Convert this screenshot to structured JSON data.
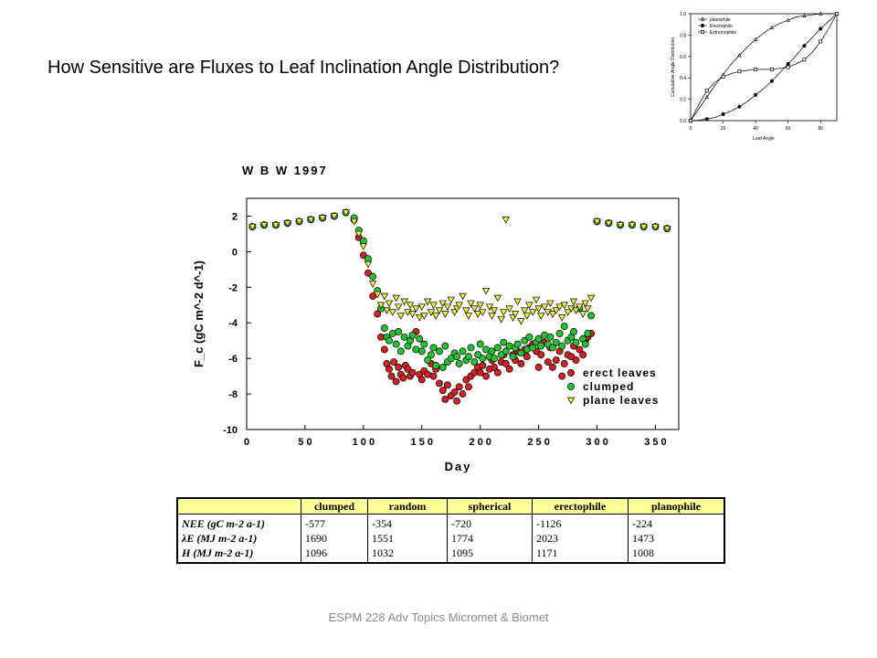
{
  "slide": {
    "title": "How Sensitive are Fluxes to Leaf Inclination Angle Distribution?",
    "footer": "ESPM 228 Adv Topics Micromet & Biomet"
  },
  "chart_data": [
    {
      "type": "scatter",
      "title": "W B W  1997",
      "xlabel": "Day",
      "ylabel": "F_c (gC m^-2 d^-1)",
      "xlim": [
        0,
        370
      ],
      "ylim": [
        -10,
        3
      ],
      "xticks": [
        0,
        50,
        100,
        150,
        200,
        250,
        300,
        350
      ],
      "yticks": [
        2,
        0,
        -2,
        -4,
        -6,
        -8,
        -10
      ],
      "legend": {
        "position": "bottom-right",
        "labels": [
          "erect leaves",
          "clumped",
          "plane leaves"
        ]
      },
      "series": [
        {
          "name": "erect leaves",
          "marker": "circle",
          "color": "#d42020",
          "x": [
            5,
            15,
            25,
            35,
            45,
            55,
            65,
            75,
            85,
            92,
            96,
            100,
            104,
            108,
            112,
            115,
            118,
            120,
            122,
            124,
            126,
            128,
            130,
            132,
            134,
            136,
            138,
            140,
            142,
            145,
            148,
            150,
            152,
            155,
            158,
            160,
            162,
            165,
            168,
            170,
            172,
            175,
            178,
            180,
            182,
            185,
            188,
            190,
            192,
            195,
            198,
            200,
            202,
            205,
            208,
            210,
            212,
            215,
            218,
            220,
            222,
            225,
            228,
            230,
            232,
            235,
            238,
            240,
            242,
            245,
            248,
            250,
            252,
            255,
            258,
            260,
            262,
            265,
            268,
            270,
            272,
            275,
            278,
            280,
            282,
            285,
            288,
            290,
            292,
            295,
            300,
            310,
            320,
            330,
            340,
            350,
            360
          ],
          "y": [
            1.4,
            1.5,
            1.5,
            1.6,
            1.7,
            1.8,
            1.9,
            2.0,
            2.2,
            1.8,
            0.8,
            -0.2,
            -1.2,
            -2.5,
            -3.5,
            -4.8,
            -5.5,
            -6.3,
            -6.6,
            -7.0,
            -6.2,
            -7.3,
            -6.5,
            -6.9,
            -7.1,
            -6.4,
            -6.6,
            -7.0,
            -6.8,
            -4.5,
            -6.9,
            -7.2,
            -6.7,
            -6.9,
            -6.3,
            -7.0,
            -6.6,
            -7.4,
            -7.8,
            -8.3,
            -7.5,
            -8.1,
            -7.9,
            -8.4,
            -7.6,
            -8.0,
            -7.2,
            -7.6,
            -7.0,
            -6.8,
            -6.5,
            -6.8,
            -6.4,
            -7.0,
            -6.6,
            -6.1,
            -6.5,
            -6.8,
            -6.2,
            -5.8,
            -6.3,
            -6.6,
            -5.8,
            -6.1,
            -5.6,
            -6.3,
            -5.5,
            -5.9,
            -5.4,
            -5.2,
            -5.6,
            -6.5,
            -5.8,
            -5.1,
            -6.2,
            -5.4,
            -6.5,
            -6.1,
            -5.6,
            -7.0,
            -6.3,
            -5.8,
            -5.9,
            -5.3,
            -6.1,
            -5.5,
            -5.8,
            -5.0,
            -4.8,
            -4.6,
            1.7,
            1.6,
            1.5,
            1.5,
            1.4,
            1.4,
            1.3
          ]
        },
        {
          "name": "clumped",
          "marker": "circle",
          "color": "#22c230",
          "x": [
            5,
            15,
            25,
            35,
            45,
            55,
            65,
            75,
            85,
            92,
            96,
            100,
            104,
            108,
            112,
            115,
            118,
            120,
            122,
            125,
            128,
            130,
            132,
            135,
            138,
            140,
            142,
            145,
            148,
            150,
            152,
            155,
            158,
            160,
            162,
            165,
            168,
            170,
            172,
            175,
            178,
            180,
            182,
            185,
            188,
            190,
            192,
            195,
            198,
            200,
            202,
            205,
            208,
            210,
            212,
            215,
            218,
            220,
            222,
            225,
            228,
            230,
            232,
            235,
            238,
            240,
            242,
            245,
            248,
            250,
            252,
            255,
            258,
            260,
            262,
            265,
            268,
            270,
            272,
            275,
            278,
            280,
            282,
            285,
            288,
            290,
            292,
            295,
            300,
            310,
            320,
            330,
            340,
            350,
            360
          ],
          "y": [
            1.4,
            1.5,
            1.5,
            1.6,
            1.7,
            1.8,
            1.9,
            2.0,
            2.2,
            1.9,
            1.2,
            0.6,
            -0.4,
            -1.4,
            -2.2,
            -3.2,
            -4.3,
            -4.8,
            -5.0,
            -4.6,
            -5.2,
            -4.5,
            -5.6,
            -4.8,
            -5.3,
            -5.0,
            -4.7,
            -5.5,
            -4.9,
            -5.6,
            -5.2,
            -6.1,
            -5.8,
            -5.4,
            -6.4,
            -5.6,
            -6.5,
            -5.3,
            -6.2,
            -6.0,
            -5.7,
            -5.9,
            -6.3,
            -5.6,
            -6.1,
            -5.9,
            -5.4,
            -6.2,
            -5.8,
            -5.2,
            -6.0,
            -5.5,
            -5.9,
            -5.6,
            -6.0,
            -5.4,
            -5.8,
            -5.1,
            -5.6,
            -5.3,
            -5.9,
            -5.4,
            -5.2,
            -5.7,
            -5.0,
            -5.5,
            -4.8,
            -5.4,
            -5.1,
            -4.9,
            -5.3,
            -4.7,
            -5.2,
            -4.8,
            -5.4,
            -5.1,
            -4.6,
            -5.3,
            -4.2,
            -5.0,
            -4.8,
            -4.5,
            -5.1,
            -3.2,
            -4.9,
            -5.2,
            -4.6,
            -3.6,
            1.7,
            1.6,
            1.5,
            1.5,
            1.4,
            1.4,
            1.3
          ]
        },
        {
          "name": "plane leaves",
          "marker": "triangle-down",
          "color": "#f0f040",
          "x": [
            5,
            15,
            25,
            35,
            45,
            55,
            65,
            75,
            85,
            92,
            96,
            100,
            104,
            108,
            112,
            115,
            118,
            120,
            122,
            125,
            128,
            130,
            132,
            135,
            138,
            140,
            142,
            145,
            148,
            150,
            152,
            155,
            158,
            160,
            162,
            165,
            168,
            170,
            172,
            175,
            178,
            180,
            182,
            185,
            188,
            190,
            192,
            195,
            198,
            200,
            202,
            205,
            208,
            210,
            212,
            215,
            218,
            220,
            222,
            225,
            228,
            230,
            232,
            235,
            238,
            240,
            242,
            245,
            248,
            250,
            252,
            255,
            258,
            260,
            262,
            265,
            268,
            270,
            272,
            275,
            278,
            280,
            282,
            285,
            288,
            290,
            292,
            295,
            300,
            310,
            320,
            330,
            340,
            350,
            360
          ],
          "y": [
            1.4,
            1.5,
            1.5,
            1.6,
            1.7,
            1.8,
            1.9,
            2.0,
            2.2,
            1.7,
            1.0,
            0.3,
            -0.7,
            -1.8,
            -2.4,
            -3.0,
            -2.5,
            -3.3,
            -2.9,
            -3.4,
            -2.6,
            -3.1,
            -3.6,
            -2.8,
            -3.4,
            -3.0,
            -3.5,
            -3.2,
            -3.7,
            -3.1,
            -3.6,
            -2.8,
            -3.4,
            -3.0,
            -3.6,
            -3.3,
            -2.9,
            -3.5,
            -3.1,
            -2.7,
            -3.4,
            -3.2,
            -3.0,
            -2.5,
            -3.3,
            -3.6,
            -2.9,
            -3.2,
            -3.5,
            -3.0,
            -3.4,
            -2.2,
            -3.1,
            -3.6,
            -3.3,
            -2.6,
            -3.8,
            -3.4,
            1.8,
            -3.2,
            -3.7,
            -3.5,
            -2.8,
            -3.9,
            -3.3,
            -3.6,
            -3.0,
            -3.4,
            -2.7,
            -3.2,
            -3.6,
            -3.1,
            -3.4,
            -2.9,
            -3.5,
            -3.3,
            -3.1,
            -3.7,
            -3.0,
            -3.4,
            -3.2,
            -2.8,
            -3.3,
            -3.1,
            -3.5,
            -2.9,
            -3.2,
            -2.6,
            1.7,
            1.6,
            1.5,
            1.5,
            1.4,
            1.4,
            1.3
          ]
        }
      ]
    },
    {
      "type": "line",
      "title": "",
      "xlabel": "Leaf Angle",
      "ylabel": "Cumulative Angle Distribution",
      "xlim": [
        0,
        90
      ],
      "ylim": [
        0,
        1.0
      ],
      "xticks": [
        0,
        20,
        40,
        60,
        80
      ],
      "yticks": [
        0.0,
        0.2,
        0.4,
        0.6,
        0.8,
        1.0
      ],
      "legend": {
        "position": "top-left",
        "labels": [
          "planophile",
          "Erectophile",
          "Extremophile"
        ]
      },
      "series": [
        {
          "name": "planophile",
          "marker": "triangle",
          "x": [
            0,
            5,
            10,
            15,
            20,
            25,
            30,
            35,
            40,
            45,
            50,
            55,
            60,
            65,
            70,
            75,
            80,
            85,
            90
          ],
          "y": [
            0,
            0.11,
            0.22,
            0.33,
            0.43,
            0.53,
            0.61,
            0.69,
            0.76,
            0.82,
            0.87,
            0.91,
            0.94,
            0.97,
            0.98,
            0.99,
            1.0,
            1.0,
            1.0
          ]
        },
        {
          "name": "Erectophile",
          "marker": "circle",
          "x": [
            0,
            5,
            10,
            15,
            20,
            25,
            30,
            35,
            40,
            45,
            50,
            55,
            60,
            65,
            70,
            75,
            80,
            85,
            90
          ],
          "y": [
            0,
            0.004,
            0.015,
            0.03,
            0.06,
            0.09,
            0.13,
            0.18,
            0.24,
            0.3,
            0.37,
            0.45,
            0.53,
            0.61,
            0.7,
            0.78,
            0.86,
            0.93,
            1.0
          ]
        },
        {
          "name": "Extremophile",
          "marker": "square",
          "x": [
            0,
            5,
            10,
            15,
            20,
            25,
            30,
            35,
            40,
            45,
            50,
            55,
            60,
            65,
            70,
            75,
            80,
            85,
            90
          ],
          "y": [
            0,
            0.15,
            0.28,
            0.36,
            0.41,
            0.44,
            0.46,
            0.47,
            0.48,
            0.48,
            0.48,
            0.49,
            0.5,
            0.53,
            0.57,
            0.64,
            0.74,
            0.86,
            1.0
          ]
        }
      ]
    }
  ],
  "table": {
    "headers": [
      "",
      "clumped",
      "random",
      "spherical",
      "erectophile",
      "planophile"
    ],
    "row_labels": [
      "NEE (gC m-2 a-1)",
      "λE (MJ m-2 a-1)",
      "H (MJ m-2 a-1)"
    ],
    "columns": [
      [
        "-577",
        "1690",
        "1096"
      ],
      [
        "-354",
        "1551",
        "1032"
      ],
      [
        "-720",
        "1774",
        "1095"
      ],
      [
        "-1126",
        "2023",
        "1171"
      ],
      [
        "-224",
        "1473",
        "1008"
      ]
    ]
  }
}
